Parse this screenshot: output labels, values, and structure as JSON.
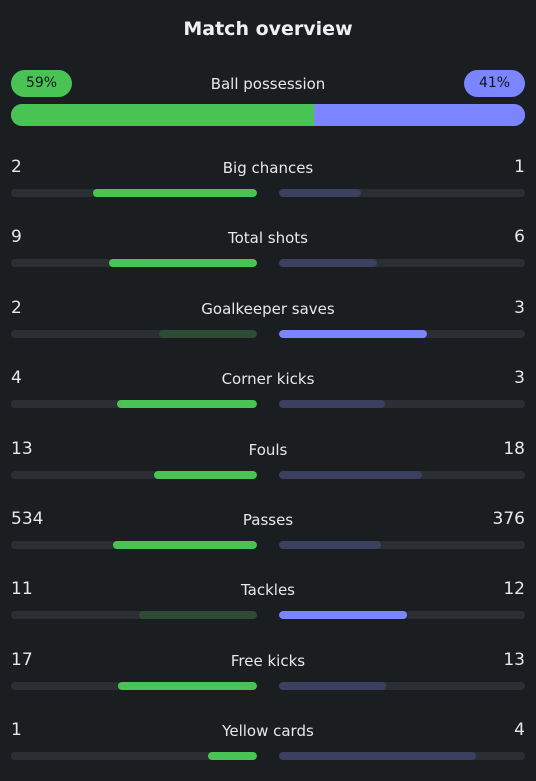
{
  "title": "Match overview",
  "colors": {
    "home_win": "#49c454",
    "home_lose": "#2f4a35",
    "away_win": "#7b85ff",
    "away_lose": "#3b4060"
  },
  "possession": {
    "label": "Ball possession",
    "home": "59%",
    "away": "41%",
    "home_value": 59,
    "away_value": 41
  },
  "stats": [
    {
      "label": "Big chances",
      "home": "2",
      "away": "1",
      "home_fraction": 0.667,
      "away_fraction": 0.333,
      "leader": "home"
    },
    {
      "label": "Total shots",
      "home": "9",
      "away": "6",
      "home_fraction": 0.6,
      "away_fraction": 0.4,
      "leader": "home"
    },
    {
      "label": "Goalkeeper saves",
      "home": "2",
      "away": "3",
      "home_fraction": 0.4,
      "away_fraction": 0.6,
      "leader": "away"
    },
    {
      "label": "Corner kicks",
      "home": "4",
      "away": "3",
      "home_fraction": 0.571,
      "away_fraction": 0.429,
      "leader": "home"
    },
    {
      "label": "Fouls",
      "home": "13",
      "away": "18",
      "home_fraction": 0.419,
      "away_fraction": 0.581,
      "leader": "home"
    },
    {
      "label": "Passes",
      "home": "534",
      "away": "376",
      "home_fraction": 0.587,
      "away_fraction": 0.413,
      "leader": "home"
    },
    {
      "label": "Tackles",
      "home": "11",
      "away": "12",
      "home_fraction": 0.478,
      "away_fraction": 0.522,
      "leader": "away"
    },
    {
      "label": "Free kicks",
      "home": "17",
      "away": "13",
      "home_fraction": 0.567,
      "away_fraction": 0.433,
      "leader": "home"
    },
    {
      "label": "Yellow cards",
      "home": "1",
      "away": "4",
      "home_fraction": 0.2,
      "away_fraction": 0.8,
      "leader": "home"
    }
  ]
}
